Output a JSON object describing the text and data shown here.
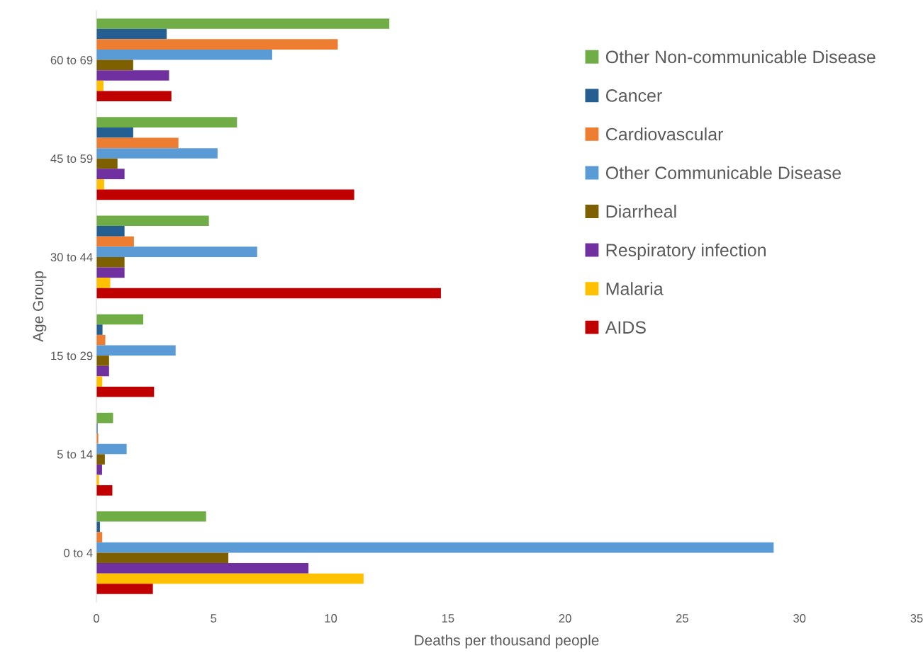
{
  "chart_data": {
    "type": "bar",
    "orientation": "horizontal",
    "xlabel": "Deaths per thousand people",
    "ylabel": "Age Group",
    "categories": [
      "60 to 69",
      "45 to 59",
      "30 to 44",
      "15 to 29",
      "5 to 14",
      "0 to 4"
    ],
    "series": [
      {
        "name": "Other Non-communicable Disease",
        "color": "#70ad47",
        "values": [
          12.5,
          6.0,
          4.8,
          2.0,
          0.71,
          4.68
        ]
      },
      {
        "name": "Cancer",
        "color": "#255e91",
        "values": [
          3.0,
          1.57,
          1.2,
          0.26,
          0.05,
          0.15
        ]
      },
      {
        "name": "Cardiovascular",
        "color": "#ed7d31",
        "values": [
          10.3,
          3.5,
          1.6,
          0.38,
          0.08,
          0.25
        ]
      },
      {
        "name": "Other Communicable Disease",
        "color": "#5b9bd5",
        "values": [
          7.5,
          5.17,
          6.86,
          3.38,
          1.29,
          28.9
        ]
      },
      {
        "name": "Diarrheal",
        "color": "#7f6000",
        "values": [
          1.57,
          0.9,
          1.2,
          0.54,
          0.36,
          5.63
        ]
      },
      {
        "name": "Respiratory infection",
        "color": "#7030a0",
        "values": [
          3.1,
          1.2,
          1.2,
          0.54,
          0.24,
          9.05
        ]
      },
      {
        "name": "Malaria",
        "color": "#ffc000",
        "values": [
          0.3,
          0.33,
          0.59,
          0.25,
          0.11,
          11.4
        ]
      },
      {
        "name": "AIDS",
        "color": "#c00000",
        "values": [
          3.2,
          11.0,
          14.7,
          2.46,
          0.68,
          2.41
        ]
      }
    ],
    "xlim": [
      0,
      35
    ],
    "xticks": [
      0,
      5,
      10,
      15,
      20,
      25,
      30,
      35
    ],
    "grid": false,
    "legend": "top right"
  }
}
